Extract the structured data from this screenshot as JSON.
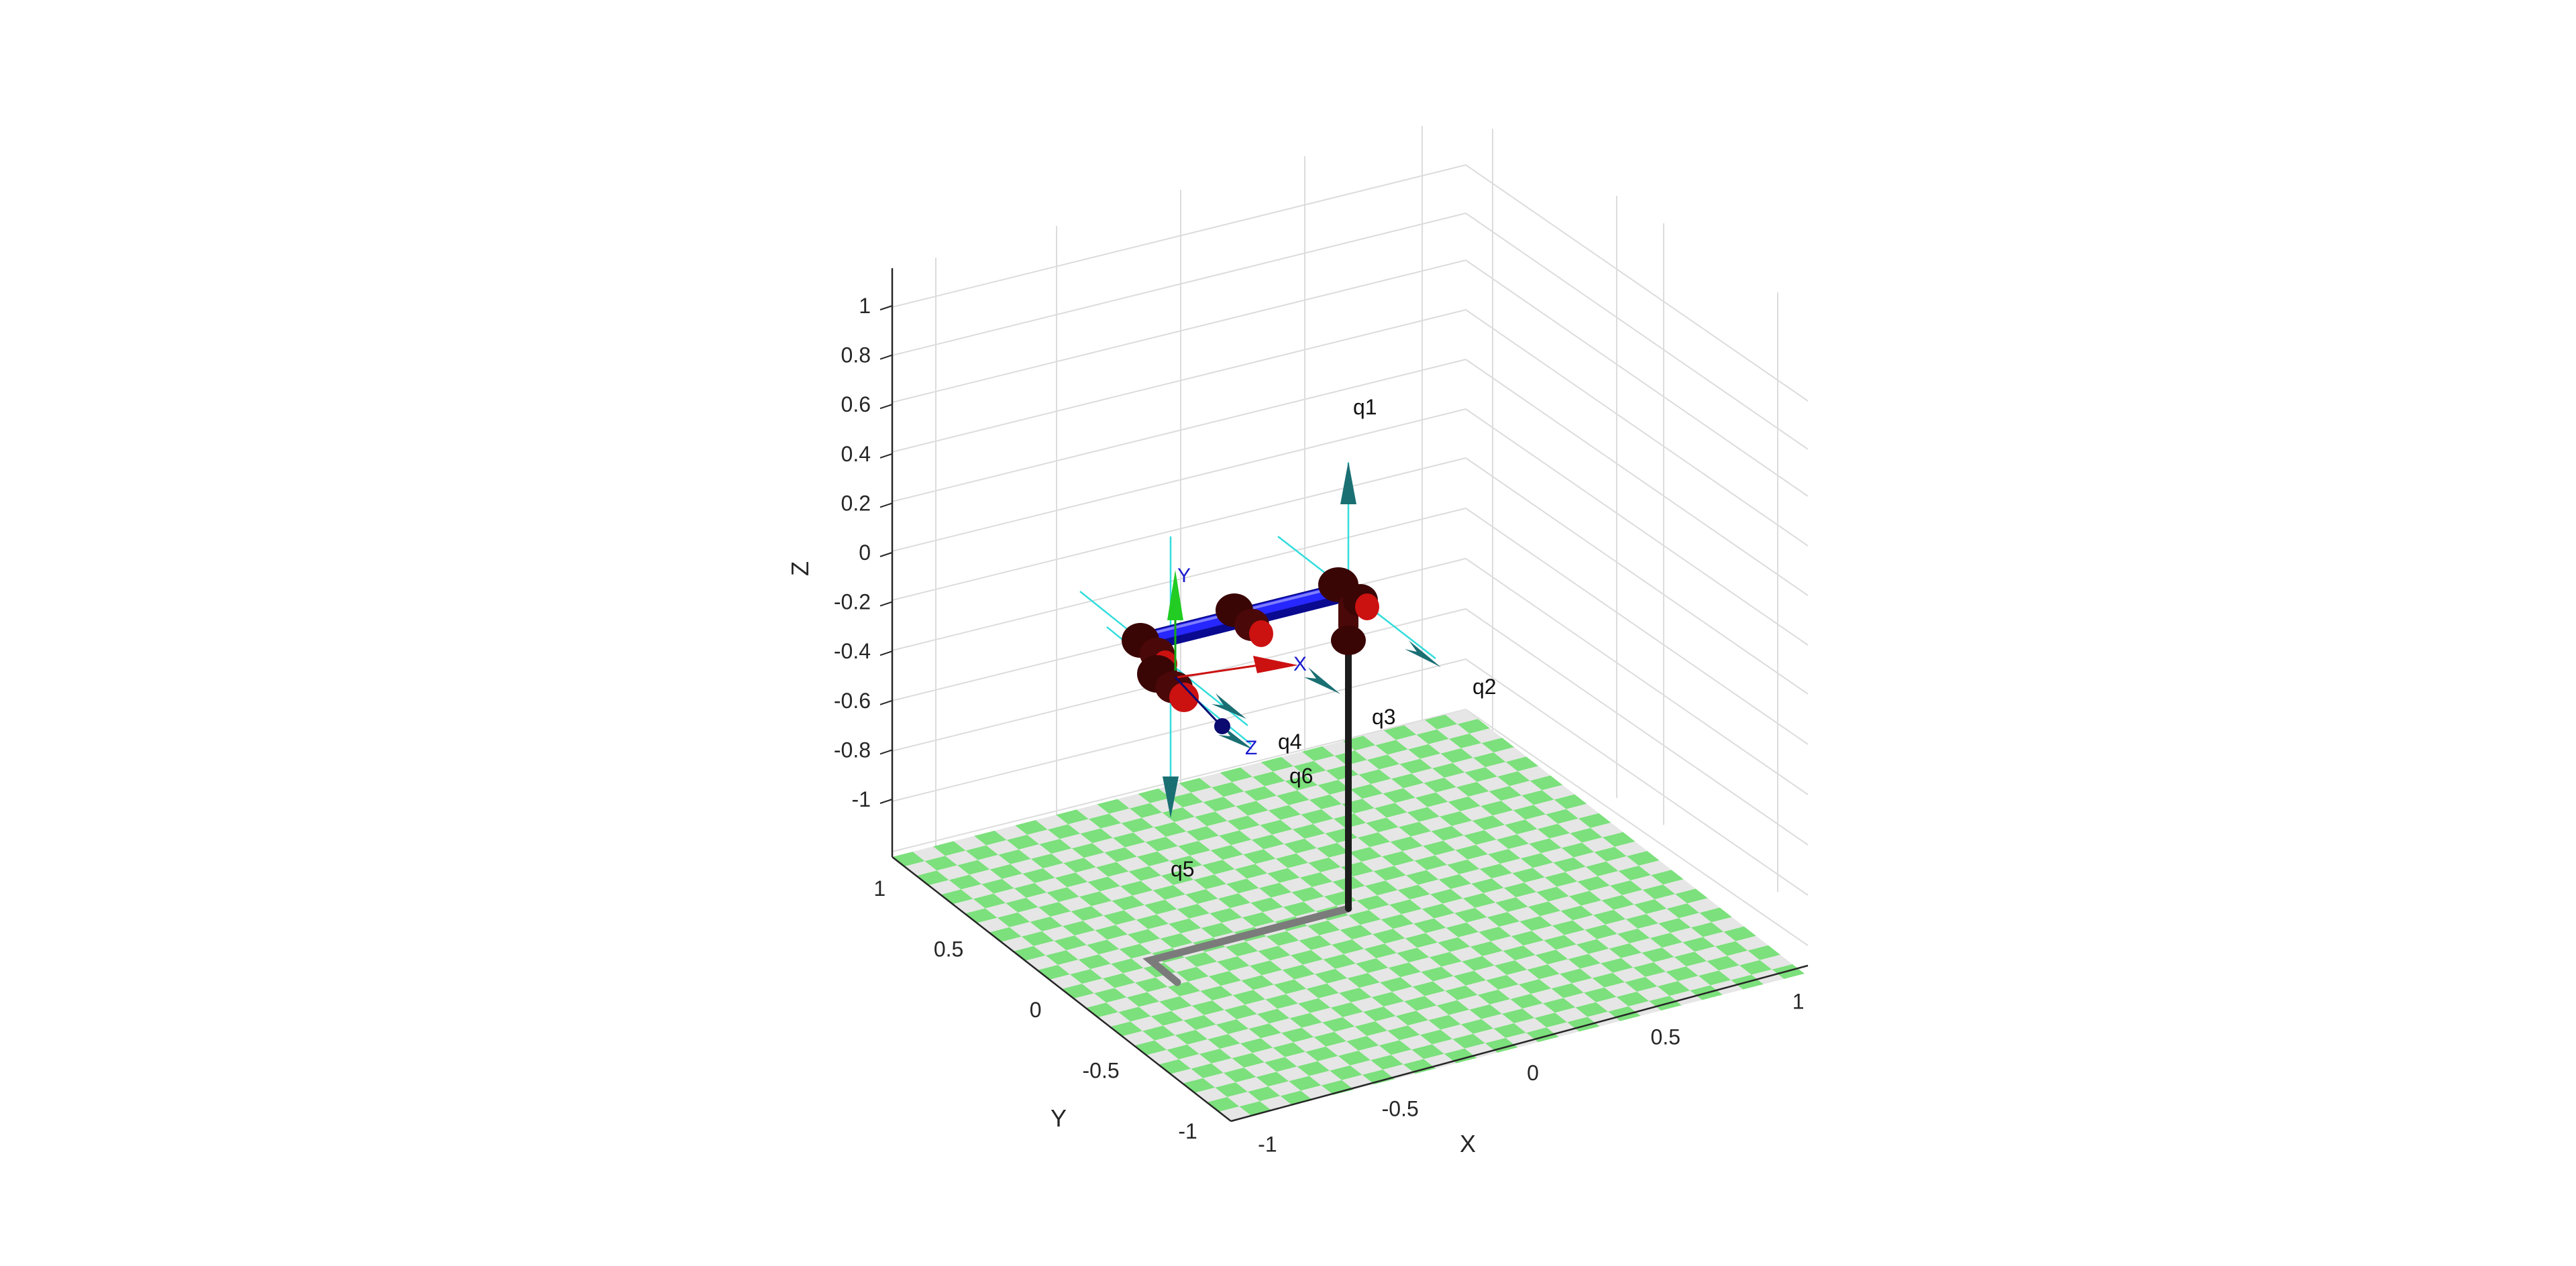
{
  "axes": {
    "x_label": "X",
    "y_label": "Y",
    "z_label": "Z",
    "x_ticks": [
      "-1",
      "-0.5",
      "0",
      "0.5",
      "1"
    ],
    "y_ticks": [
      "-1",
      "-0.5",
      "0",
      "0.5",
      "1"
    ],
    "z_ticks": [
      "-1",
      "-0.8",
      "-0.6",
      "-0.4",
      "-0.2",
      "0",
      "0.2",
      "0.4",
      "0.6",
      "0.8",
      "1"
    ],
    "grid": true
  },
  "robot": {
    "joint_labels": [
      "q1",
      "q2",
      "q3",
      "q4",
      "q5",
      "q6"
    ],
    "tool_frame_labels": {
      "x": "X",
      "y": "Y",
      "z": "Z"
    },
    "link_color": "#1515e6",
    "joint_color": "#5a0a0a",
    "joint_cap_color": "#cc1111",
    "joint_axis_color": "#1a6f73",
    "axis_line_color": "#33dddd"
  },
  "floor": {
    "colors": [
      "#7ce07c",
      "#e6e6e6"
    ]
  }
}
